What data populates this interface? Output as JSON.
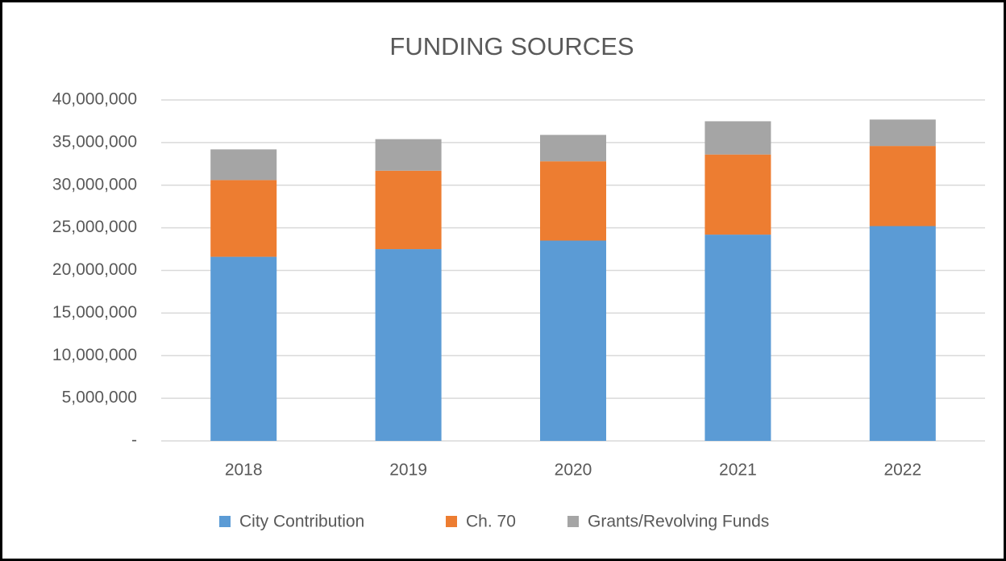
{
  "chart_data": {
    "type": "stacked_bar",
    "title": "FUNDING SOURCES",
    "categories": [
      "2018",
      "2019",
      "2020",
      "2021",
      "2022"
    ],
    "series": [
      {
        "name": "City Contribution",
        "color": "#5b9bd5",
        "values": [
          21600000,
          22500000,
          23500000,
          24200000,
          25200000
        ]
      },
      {
        "name": "Ch. 70",
        "color": "#ed7d31",
        "values": [
          9000000,
          9200000,
          9300000,
          9400000,
          9400000
        ]
      },
      {
        "name": "Grants/Revolving Funds",
        "color": "#a5a5a5",
        "values": [
          3600000,
          3700000,
          3100000,
          3900000,
          3100000
        ]
      }
    ],
    "ylim": [
      0,
      40000000
    ],
    "yticks": [
      {
        "value": 0,
        "label": "-"
      },
      {
        "value": 5000000,
        "label": "5,000,000"
      },
      {
        "value": 10000000,
        "label": "10,000,000"
      },
      {
        "value": 15000000,
        "label": "15,000,000"
      },
      {
        "value": 20000000,
        "label": "20,000,000"
      },
      {
        "value": 25000000,
        "label": "25,000,000"
      },
      {
        "value": 30000000,
        "label": "30,000,000"
      },
      {
        "value": 35000000,
        "label": "35,000,000"
      },
      {
        "value": 40000000,
        "label": "40,000,000"
      }
    ],
    "grid": true,
    "legend": "bottom"
  }
}
